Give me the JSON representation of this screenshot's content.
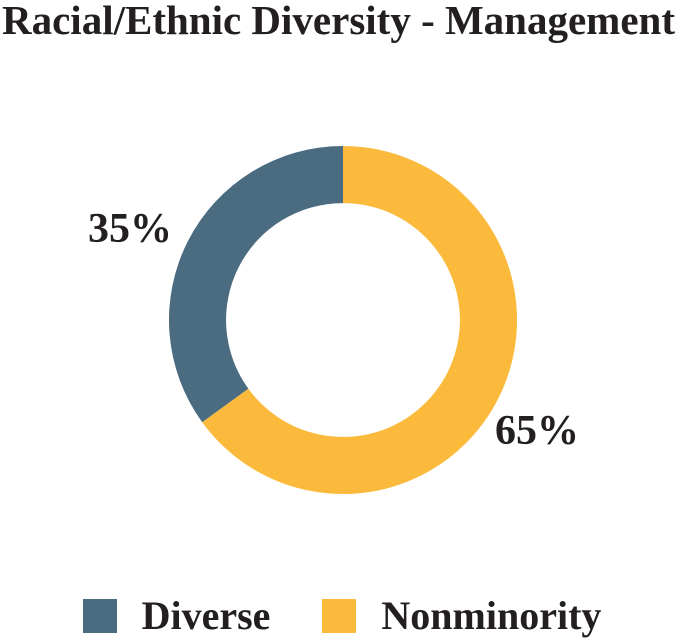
{
  "title": "Racial/Ethnic Diversity - Management",
  "chart_data": {
    "type": "pie",
    "subtype": "donut",
    "title": "Racial/Ethnic Diversity - Management",
    "categories": [
      "Diverse",
      "Nonminority"
    ],
    "values": [
      35,
      65
    ],
    "unit": "percent",
    "slice_labels": [
      "35%",
      "65%"
    ],
    "colors": [
      "#4A6B80",
      "#FBBA3B"
    ],
    "start_angle": 90,
    "direction": "counterclockwise",
    "inner_radius_ratio": 0.672,
    "legend_position": "bottom",
    "background_color": "#FFFFFF",
    "text_color": "#231F20"
  },
  "legend": {
    "items": [
      {
        "label": "Diverse",
        "color": "#4A6B80"
      },
      {
        "label": "Nonminority",
        "color": "#FBBA3B"
      }
    ]
  }
}
